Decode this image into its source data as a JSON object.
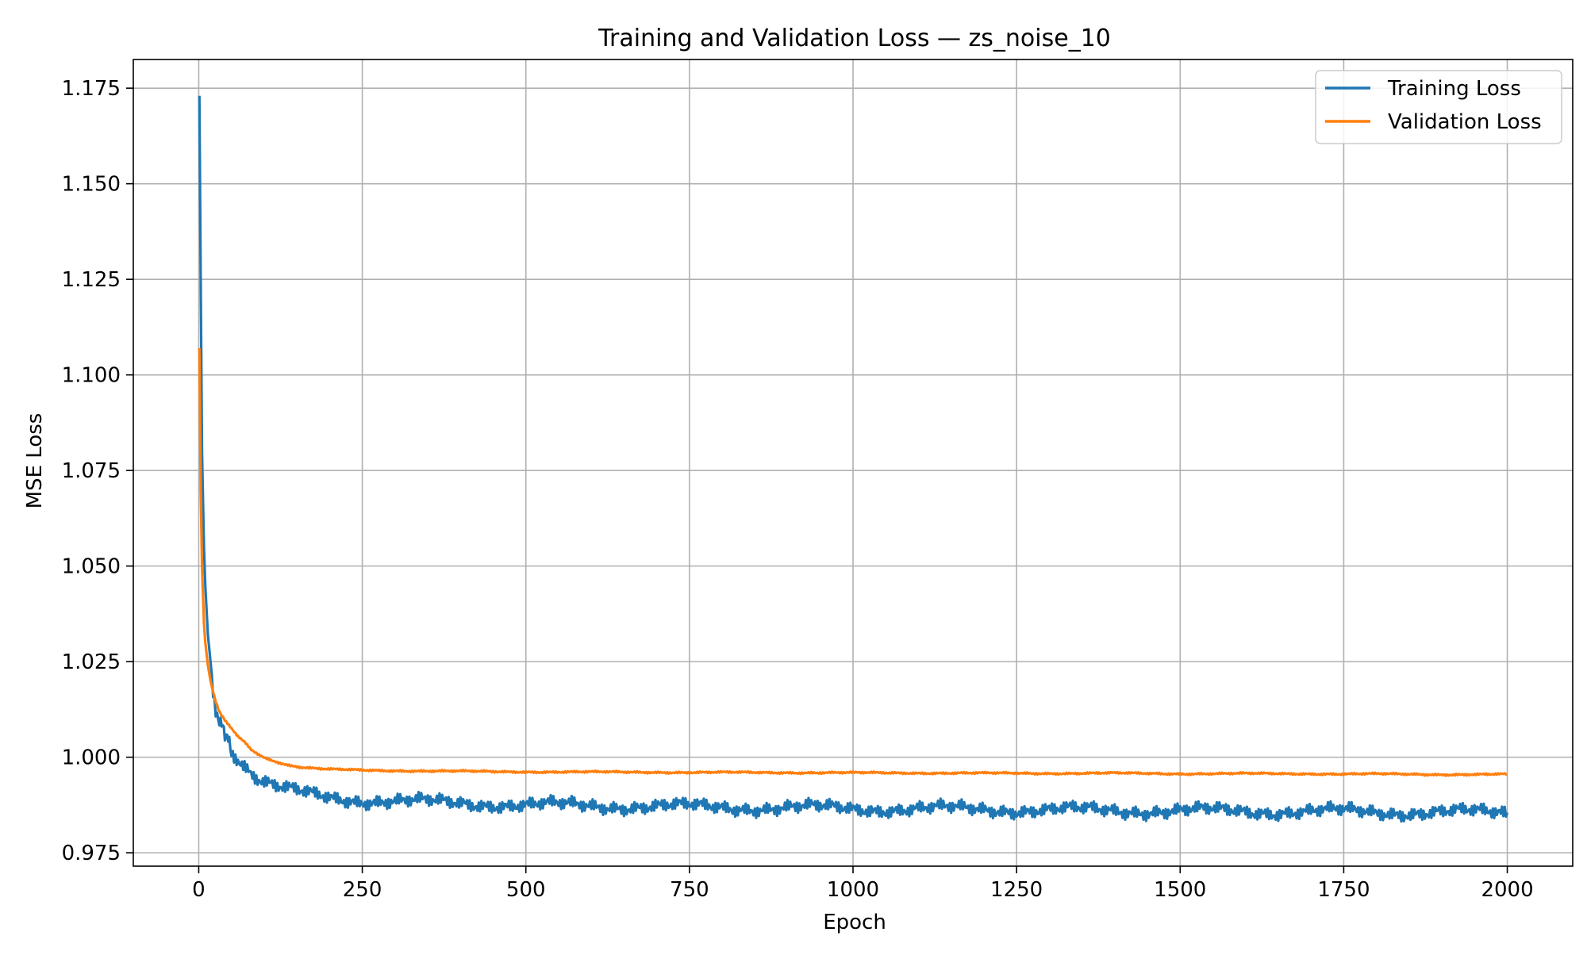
{
  "chart_data": {
    "type": "line",
    "title": "Training and Validation Loss — zs_noise_10",
    "xlabel": "Epoch",
    "ylabel": "MSE Loss",
    "xlim": [
      -100,
      2100
    ],
    "ylim": [
      0.9715,
      1.1825
    ],
    "xticks": [
      0,
      250,
      500,
      750,
      1000,
      1250,
      1500,
      1750,
      2000
    ],
    "yticks": [
      0.975,
      1.0,
      1.025,
      1.05,
      1.075,
      1.1,
      1.125,
      1.15,
      1.175
    ],
    "grid": true,
    "legend_position": "top-right",
    "series": [
      {
        "name": "Training Loss",
        "color": "#1f77b4",
        "x": [
          1,
          3,
          5,
          8,
          10,
          14,
          18,
          22,
          26,
          30,
          35,
          40,
          45,
          50,
          60,
          70,
          80,
          90,
          100,
          120,
          140,
          160,
          180,
          200,
          250,
          300,
          350,
          400,
          450,
          500,
          600,
          700,
          750,
          800,
          900,
          1000,
          1100,
          1200,
          1250,
          1300,
          1400,
          1500,
          1600,
          1700,
          1750,
          1800,
          1900,
          2000
        ],
        "y": [
          1.173,
          1.125,
          1.08,
          1.055,
          1.045,
          1.032,
          1.025,
          1.018,
          1.013,
          1.011,
          1.008,
          1.006,
          1.004,
          1.002,
          1.0,
          0.998,
          0.996,
          0.9945,
          0.9935,
          0.992,
          0.9912,
          0.9905,
          0.99,
          0.9895,
          0.9888,
          0.9885,
          0.9882,
          0.988,
          0.9878,
          0.9875,
          0.9873,
          0.9872,
          0.987,
          0.9869,
          0.9868,
          0.9866,
          0.9865,
          0.9864,
          0.9863,
          0.9862,
          0.9861,
          0.986,
          0.9859,
          0.9858,
          0.9858,
          0.9857,
          0.9856,
          0.9855
        ]
      },
      {
        "name": "Validation Loss",
        "color": "#ff7f0e",
        "x": [
          1,
          3,
          5,
          8,
          10,
          14,
          18,
          22,
          26,
          30,
          35,
          40,
          50,
          60,
          70,
          80,
          90,
          100,
          110,
          120,
          130,
          140,
          160,
          180,
          200,
          250,
          300,
          350,
          400,
          450,
          500,
          600,
          700,
          750,
          800,
          900,
          1000,
          1100,
          1200,
          1250,
          1300,
          1400,
          1500,
          1600,
          1700,
          1750,
          1800,
          1900,
          2000
        ],
        "y": [
          1.107,
          1.07,
          1.05,
          1.035,
          1.03,
          1.024,
          1.02,
          1.017,
          1.0145,
          1.0125,
          1.011,
          1.0095,
          1.0075,
          1.0055,
          1.004,
          1.002,
          1.001,
          1.0,
          0.9993,
          0.9988,
          0.9983,
          0.9978,
          0.9973,
          0.997,
          0.9968,
          0.9966,
          0.9965,
          0.9964,
          0.9963,
          0.9962,
          0.9962,
          0.9961,
          0.9961,
          0.996,
          0.996,
          0.996,
          0.9959,
          0.9959,
          0.9958,
          0.9958,
          0.9958,
          0.9958,
          0.9957,
          0.9957,
          0.9957,
          0.9956,
          0.9956,
          0.9955,
          0.9955
        ]
      }
    ]
  }
}
